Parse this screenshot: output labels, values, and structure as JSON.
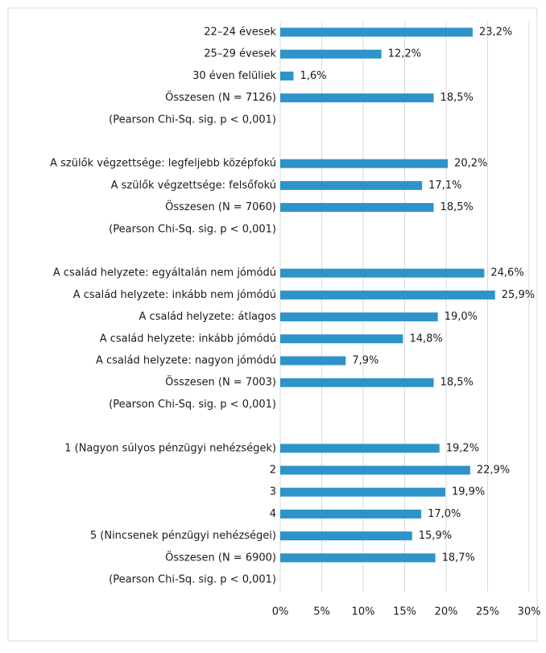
{
  "chart_data": {
    "type": "bar",
    "orientation": "horizontal",
    "color": "#2e93c9",
    "grid": true,
    "categories": [
      "22–24 évesek",
      "25–29 évesek",
      "30 éven felüliek",
      "Összesen (N = 7126)",
      "(Pearson Chi-Sq. sig. p < 0,001)",
      null,
      "A szülők végzettsége: legfeljebb középfokú",
      "A szülők végzettsége: felsőfokú",
      "Összesen (N = 7060)",
      "(Pearson Chi-Sq. sig. p < 0,001)",
      null,
      "A család helyzete: egyáltalán nem jómódú",
      "A család helyzete: inkább nem jómódú",
      "A család helyzete: átlagos",
      "A család helyzete: inkább jómódú",
      "A család helyzete: nagyon jómódú",
      "Összesen (N = 7003)",
      "(Pearson Chi-Sq. sig. p < 0,001)",
      null,
      "1 (Nagyon súlyos pénzügyi nehézségek)",
      "2",
      "3",
      "4",
      "5 (Nincsenek pénzügyi nehézségei)",
      "Összesen (N = 6900)",
      "(Pearson Chi-Sq. sig. p < 0,001)"
    ],
    "values": [
      23.2,
      12.2,
      1.6,
      18.5,
      null,
      null,
      20.2,
      17.1,
      18.5,
      null,
      null,
      24.6,
      25.9,
      19.0,
      14.8,
      7.9,
      18.5,
      null,
      null,
      19.2,
      22.9,
      19.9,
      17.0,
      15.9,
      18.7,
      null
    ],
    "value_labels": [
      "23,2%",
      "12,2%",
      "1,6%",
      "18,5%",
      null,
      null,
      "20,2%",
      "17,1%",
      "18,5%",
      null,
      null,
      "24,6%",
      "25,9%",
      "19,0%",
      "14,8%",
      "7,9%",
      "18,5%",
      null,
      null,
      "19,2%",
      "22,9%",
      "19,9%",
      "17,0%",
      "15,9%",
      "18,7%",
      null
    ],
    "xlim": [
      0,
      30
    ],
    "xticks": [
      {
        "value": 0,
        "label": "0%"
      },
      {
        "value": 5,
        "label": "5%"
      },
      {
        "value": 10,
        "label": "10%"
      },
      {
        "value": 15,
        "label": "15%"
      },
      {
        "value": 20,
        "label": "20%"
      },
      {
        "value": 25,
        "label": "25%"
      },
      {
        "value": 30,
        "label": "30%"
      }
    ]
  }
}
